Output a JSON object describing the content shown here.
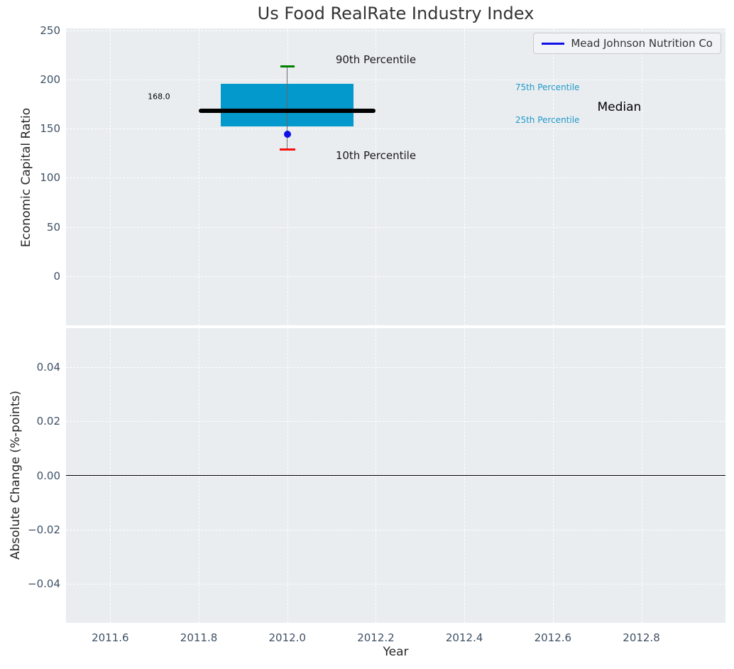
{
  "figure": {
    "title": "Us Food RealRate Industry Index",
    "background": "#ffffff",
    "axes_background": "#e9edf0",
    "grid_color": "#ffffff",
    "tick_color": "#3d5065",
    "axis_label_color": "#262626",
    "title_color": "#333333"
  },
  "chart_data": [
    {
      "type": "box",
      "title": "Us Food RealRate Industry Index",
      "ylabel": "Economic Capital Ratio",
      "xlim": [
        2011.5,
        2012.99
      ],
      "ylim": [
        -50,
        252
      ],
      "grid": true,
      "legend_position": "upper right",
      "yticks": {
        "values": [
          0,
          50,
          100,
          150,
          200,
          250
        ],
        "labels": [
          "0",
          "50",
          "100",
          "150",
          "200",
          "250"
        ]
      },
      "xticks": {
        "values": [
          2011.6,
          2011.8,
          2012.0,
          2012.2,
          2012.4,
          2012.6,
          2012.8
        ],
        "labels": []
      },
      "industry_percentiles": {
        "year": 2012.0,
        "p90": 213,
        "p75": 196,
        "median": 168.0,
        "p25": 152,
        "p10": 129,
        "median_value_label": "168.0",
        "box_x_range": [
          2011.85,
          2012.15
        ],
        "median_x_range": [
          2011.8,
          2012.2
        ]
      },
      "company_series": {
        "name": "Mead Johnson Nutrition Co",
        "x": [
          2012.0
        ],
        "y": [
          144
        ],
        "color": "#0f0fe8"
      },
      "colors": {
        "box": "#0399cc",
        "median_line": "#000000",
        "whisker": "#666666",
        "p90_cap": "#008000",
        "p10_cap": "#f50f0f",
        "percentile_label": "#2199c9"
      },
      "annotations": [
        {
          "text": "90th Percentile",
          "x": 2012.2,
          "y": 220,
          "size": 15,
          "color": "#1a1a1a",
          "ha": "center"
        },
        {
          "text": "10th Percentile",
          "x": 2012.2,
          "y": 123,
          "size": 15,
          "color": "#1a1a1a",
          "ha": "center"
        },
        {
          "text": "75th Percentile",
          "x": 2012.515,
          "y": 192,
          "size": 12,
          "color": "#2199c9",
          "ha": "left"
        },
        {
          "text": "25th Percentile",
          "x": 2012.515,
          "y": 159,
          "size": 12,
          "color": "#2199c9",
          "ha": "left"
        },
        {
          "text": "Median",
          "x": 2012.75,
          "y": 172,
          "size": 17,
          "color": "#000000",
          "ha": "center"
        },
        {
          "text": "168.0",
          "x": 2011.71,
          "y": 183,
          "size": 11,
          "color": "#000000",
          "ha": "center"
        }
      ]
    },
    {
      "type": "line",
      "ylabel": "Absolute Change (%-points)",
      "xlabel": "Year",
      "xlim": [
        2011.5,
        2012.99
      ],
      "ylim": [
        -0.0545,
        0.0545
      ],
      "grid": true,
      "yticks": {
        "values": [
          -0.04,
          -0.02,
          0,
          0.02,
          0.04
        ],
        "labels": [
          "−0.04",
          "−0.02",
          "0.00",
          "0.02",
          "0.04"
        ]
      },
      "xticks": {
        "values": [
          2011.6,
          2011.8,
          2012.0,
          2012.2,
          2012.4,
          2012.6,
          2012.8
        ],
        "labels": [
          "2011.6",
          "2011.8",
          "2012.0",
          "2012.2",
          "2012.4",
          "2012.6",
          "2012.8"
        ]
      },
      "zero_line": {
        "y": 0.0,
        "color": "#000000"
      },
      "series": []
    }
  ]
}
